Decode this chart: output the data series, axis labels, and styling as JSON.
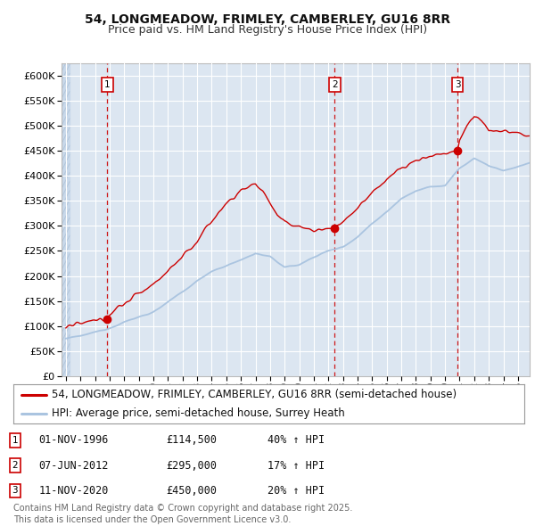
{
  "title": "54, LONGMEADOW, FRIMLEY, CAMBERLEY, GU16 8RR",
  "subtitle": "Price paid vs. HM Land Registry's House Price Index (HPI)",
  "ylim": [
    0,
    625000
  ],
  "yticks": [
    0,
    50000,
    100000,
    150000,
    200000,
    250000,
    300000,
    350000,
    400000,
    450000,
    500000,
    550000,
    600000
  ],
  "ytick_labels": [
    "£0",
    "£50K",
    "£100K",
    "£150K",
    "£200K",
    "£250K",
    "£300K",
    "£350K",
    "£400K",
    "£450K",
    "£500K",
    "£550K",
    "£600K"
  ],
  "xlim_start": 1993.7,
  "xlim_end": 2025.8,
  "background_color": "#dce6f1",
  "grid_color": "#ffffff",
  "line_color_property": "#cc0000",
  "line_color_hpi": "#aac4e0",
  "sale_dates": [
    1996.836,
    2012.436,
    2020.861
  ],
  "sale_prices": [
    114500,
    295000,
    450000
  ],
  "sale_labels": [
    "1",
    "2",
    "3"
  ],
  "vline_color": "#cc0000",
  "legend_label_property": "54, LONGMEADOW, FRIMLEY, CAMBERLEY, GU16 8RR (semi-detached house)",
  "legend_label_hpi": "HPI: Average price, semi-detached house, Surrey Heath",
  "table_entries": [
    {
      "label": "1",
      "date": "01-NOV-1996",
      "price": "£114,500",
      "change": "40% ↑ HPI"
    },
    {
      "label": "2",
      "date": "07-JUN-2012",
      "price": "£295,000",
      "change": "17% ↑ HPI"
    },
    {
      "label": "3",
      "date": "11-NOV-2020",
      "price": "£450,000",
      "change": "20% ↑ HPI"
    }
  ],
  "footer": "Contains HM Land Registry data © Crown copyright and database right 2025.\nThis data is licensed under the Open Government Licence v3.0.",
  "title_fontsize": 10,
  "subtitle_fontsize": 9,
  "tick_fontsize": 8,
  "legend_fontsize": 8.5
}
